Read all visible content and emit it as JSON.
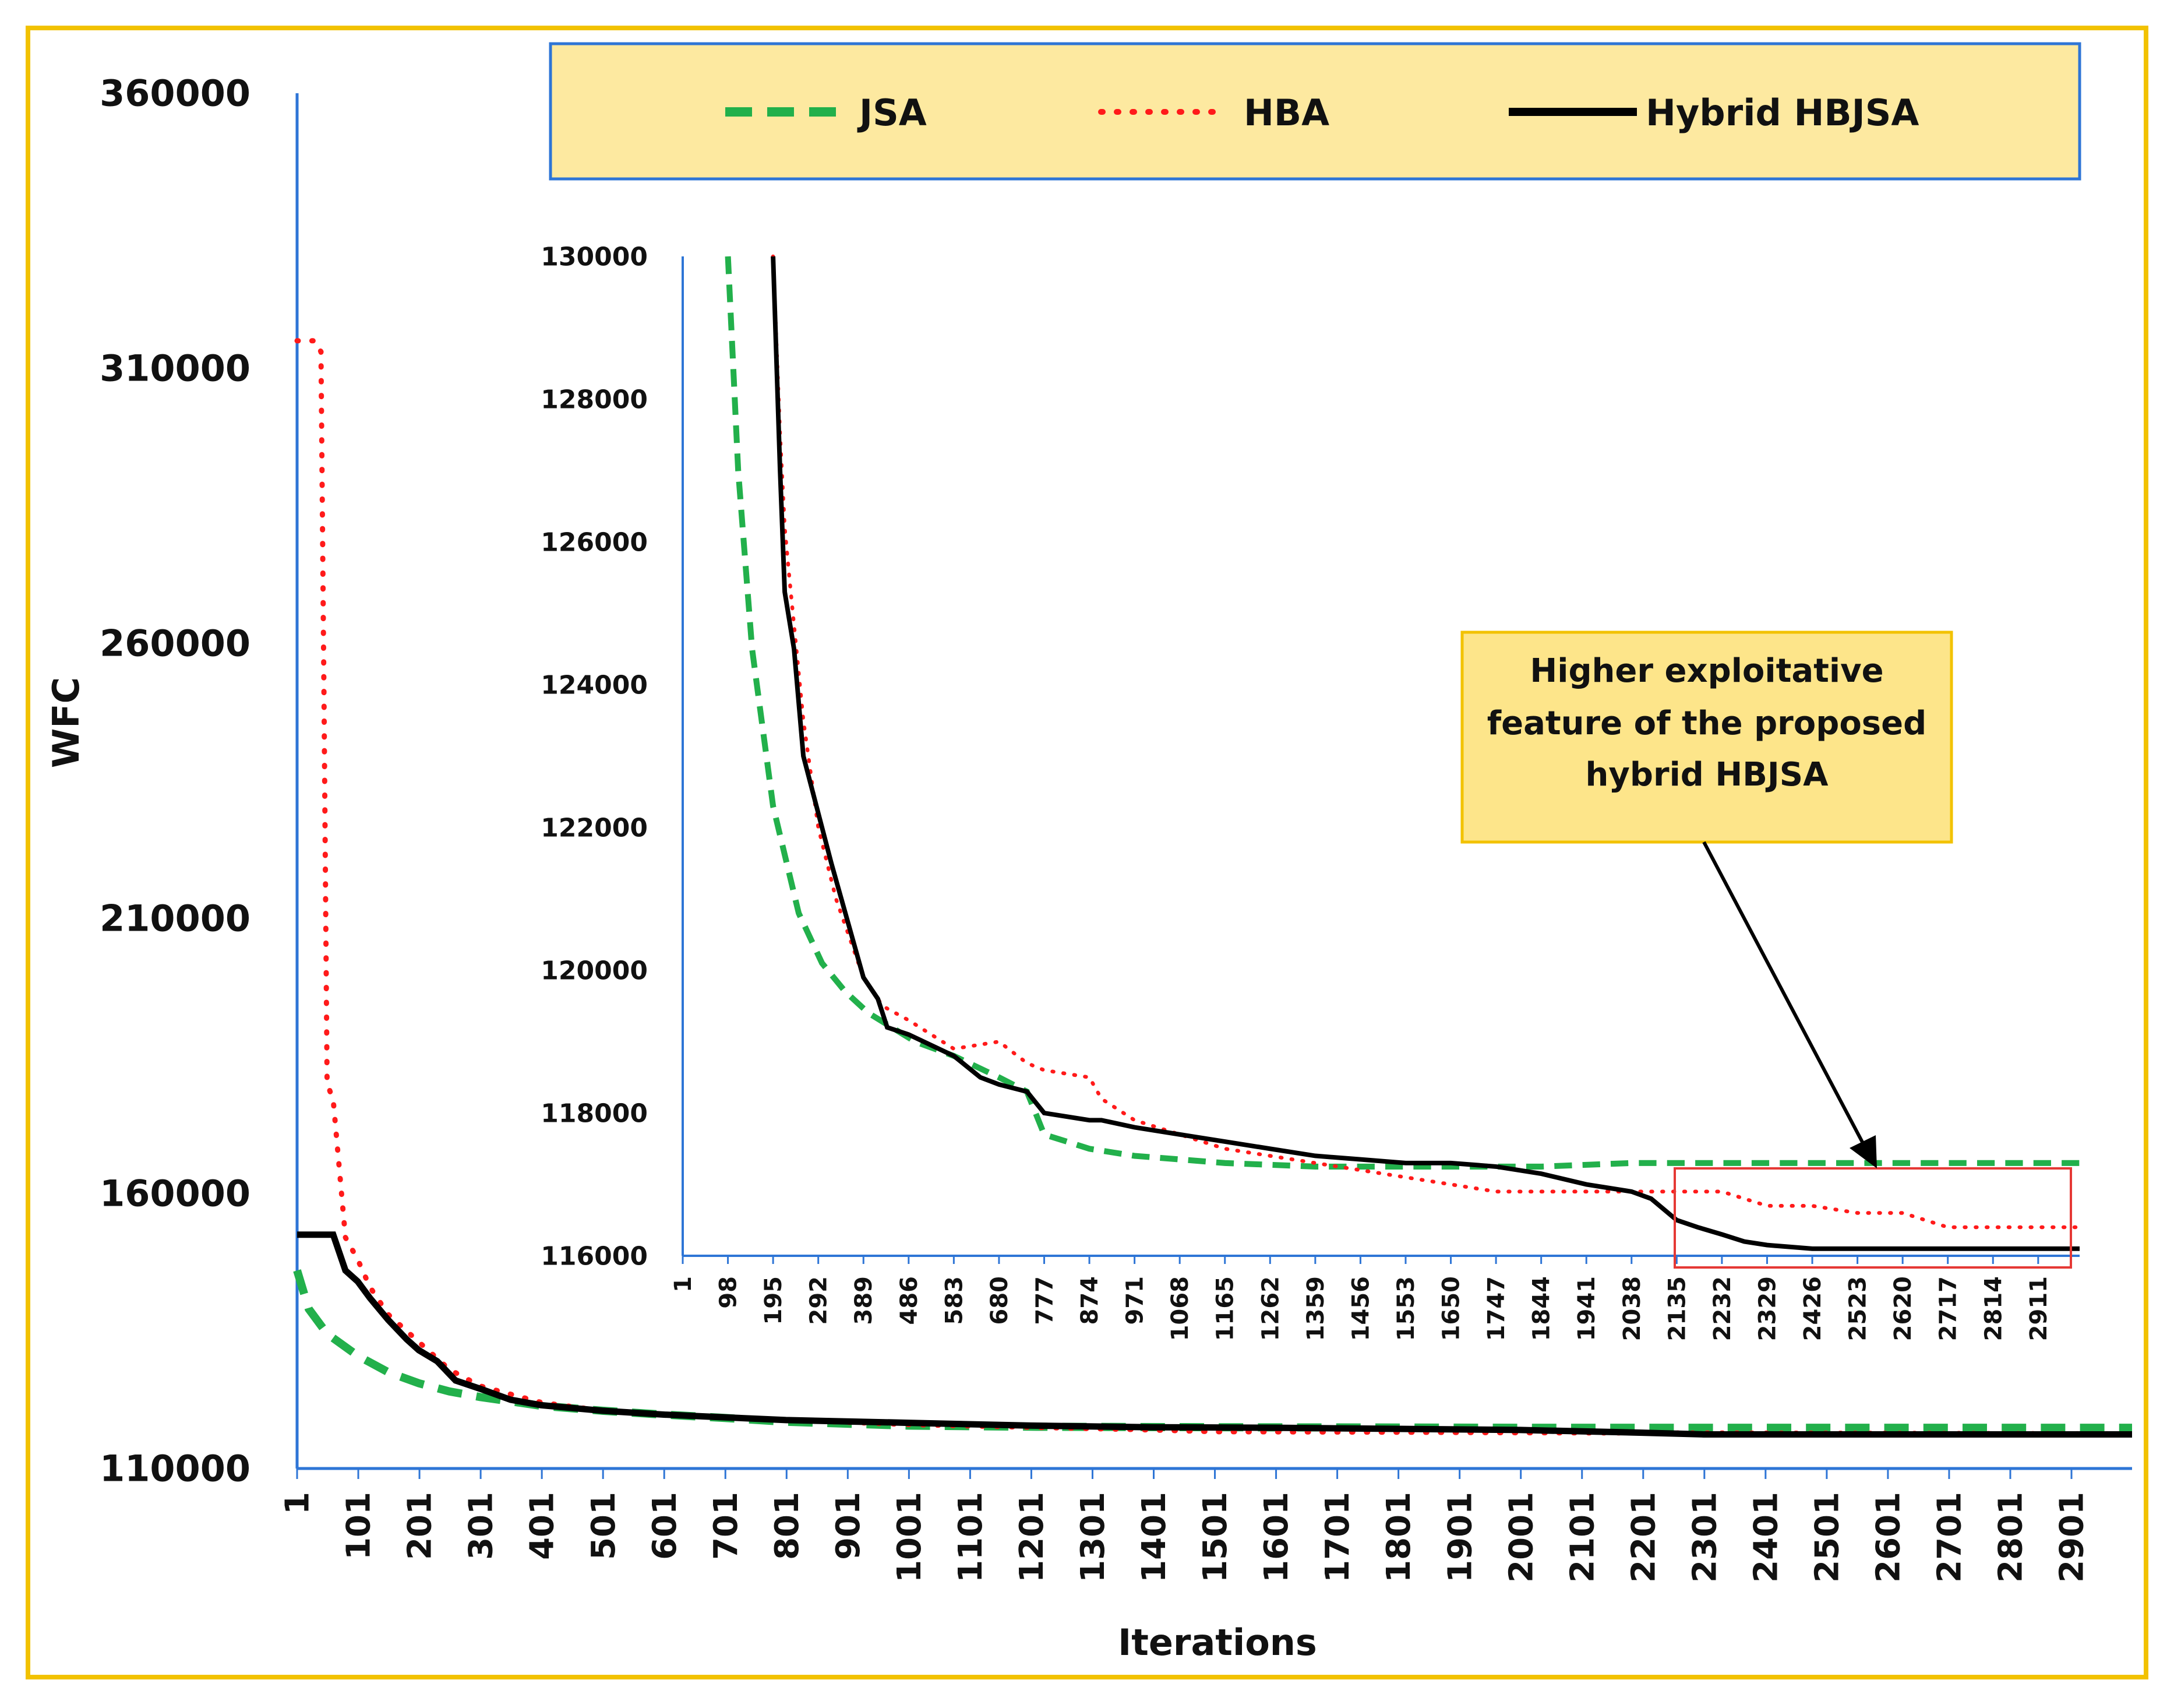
{
  "colors": {
    "jsa": "#22b04b",
    "hba": "#ff1a1a",
    "hybrid": "#000000",
    "axis": "#2e75d6",
    "frame": "#f2c200",
    "legend_fill": "#fde9a0",
    "legend_border": "#2e75d6",
    "callout_fill": "#fde58a",
    "callout_border": "#f2c200",
    "highlight_box": "#e53935"
  },
  "chart_data": [
    {
      "id": "main",
      "type": "line",
      "title": "",
      "xlabel": "Iterations",
      "ylabel": "WFC",
      "xlim": [
        1,
        3000
      ],
      "ylim": [
        110000,
        360000
      ],
      "yticks": [
        110000,
        160000,
        210000,
        260000,
        310000,
        360000
      ],
      "ytick_labels": [
        "110000",
        "160000",
        "210000",
        "260000",
        "310000",
        "360000"
      ],
      "xticks": [
        1,
        101,
        201,
        301,
        401,
        501,
        601,
        701,
        801,
        901,
        1001,
        1101,
        1201,
        1301,
        1401,
        1501,
        1601,
        1701,
        1801,
        1901,
        2001,
        2101,
        2201,
        2301,
        2401,
        2501,
        2601,
        2701,
        2801,
        2901
      ],
      "xtick_labels": [
        "1",
        "101",
        "201",
        "301",
        "401",
        "501",
        "601",
        "701",
        "801",
        "901",
        "1001",
        "1101",
        "1201",
        "1301",
        "1401",
        "1501",
        "1601",
        "1701",
        "1801",
        "1901",
        "2001",
        "2101",
        "2201",
        "2301",
        "2401",
        "2501",
        "2601",
        "2701",
        "2801",
        "2901"
      ],
      "legend": {
        "position": "top",
        "entries": [
          "JSA",
          "HBA",
          "Hybrid HBJSA"
        ]
      },
      "series": [
        {
          "name": "JSA",
          "style": "dashed",
          "x": [
            1,
            20,
            50,
            100,
            150,
            200,
            250,
            300,
            350,
            400,
            500,
            600,
            700,
            800,
            1000,
            1200,
            1500,
            2000,
            2500,
            3000
          ],
          "y": [
            146000,
            139000,
            134500,
            130500,
            127500,
            125500,
            124000,
            123000,
            122200,
            121400,
            120500,
            119800,
            119200,
            118500,
            117800,
            117600,
            117500,
            117400,
            117400,
            117400
          ]
        },
        {
          "name": "HBA",
          "style": "dotted",
          "x": [
            1,
            30,
            40,
            45,
            50,
            60,
            80,
            100,
            120,
            150,
            200,
            250,
            300,
            400,
            500,
            600,
            700,
            800,
            1000,
            1200,
            1400,
            1500,
            1800,
            2000,
            2500,
            3000
          ],
          "y": [
            315000,
            315000,
            313000,
            250000,
            180000,
            177000,
            152000,
            148000,
            143000,
            138000,
            133000,
            128000,
            125000,
            122000,
            120500,
            119800,
            119300,
            118800,
            118000,
            117500,
            117000,
            116700,
            116600,
            116500,
            116400,
            116300
          ]
        },
        {
          "name": "Hybrid HBJSA",
          "style": "solid",
          "x": [
            1,
            60,
            80,
            100,
            120,
            150,
            180,
            200,
            230,
            260,
            300,
            350,
            400,
            500,
            600,
            700,
            800,
            1000,
            1200,
            1400,
            1600,
            2000,
            2200,
            2300,
            2500,
            3000
          ],
          "y": [
            152500,
            152500,
            146000,
            144000,
            141000,
            137000,
            133500,
            131500,
            129500,
            126000,
            124500,
            122500,
            121500,
            120500,
            119800,
            119300,
            118800,
            118300,
            117800,
            117500,
            117400,
            117000,
            116500,
            116200,
            116200,
            116200
          ]
        }
      ]
    },
    {
      "id": "inset",
      "type": "line",
      "title": "",
      "xlabel": "",
      "ylabel": "",
      "xlim": [
        1,
        3000
      ],
      "ylim": [
        116000,
        130000
      ],
      "yticks": [
        116000,
        118000,
        120000,
        122000,
        124000,
        126000,
        128000,
        130000
      ],
      "ytick_labels": [
        "116000",
        "118000",
        "120000",
        "122000",
        "124000",
        "126000",
        "128000",
        "130000"
      ],
      "xticks": [
        1,
        98,
        195,
        292,
        389,
        486,
        583,
        680,
        777,
        874,
        971,
        1068,
        1165,
        1262,
        1359,
        1456,
        1553,
        1650,
        1747,
        1844,
        1941,
        2038,
        2135,
        2232,
        2329,
        2426,
        2523,
        2620,
        2717,
        2814,
        2911
      ],
      "xtick_labels": [
        "1",
        "98",
        "195",
        "292",
        "389",
        "486",
        "583",
        "680",
        "777",
        "874",
        "971",
        "1068",
        "1165",
        "1262",
        "1359",
        "1456",
        "1553",
        "1650",
        "1747",
        "1844",
        "1941",
        "2038",
        "2135",
        "2232",
        "2329",
        "2426",
        "2523",
        "2620",
        "2717",
        "2814",
        "2911"
      ],
      "series": [
        {
          "name": "JSA",
          "style": "dashed",
          "x": [
            98,
            120,
            150,
            195,
            250,
            300,
            350,
            400,
            450,
            500,
            583,
            680,
            740,
            777,
            874,
            971,
            1068,
            1165,
            1359,
            1553,
            1747,
            1844,
            2038,
            2232,
            2426,
            2620,
            2814,
            3000
          ],
          "y": [
            130000,
            127000,
            124500,
            122300,
            120800,
            120100,
            119700,
            119400,
            119200,
            119000,
            118800,
            118500,
            118300,
            117700,
            117500,
            117400,
            117350,
            117300,
            117250,
            117250,
            117250,
            117250,
            117300,
            117300,
            117300,
            117300,
            117300,
            117300
          ]
        },
        {
          "name": "HBA",
          "style": "dotted",
          "x": [
            195,
            210,
            220,
            230,
            260,
            292,
            330,
            389,
            430,
            486,
            583,
            680,
            740,
            777,
            874,
            900,
            971,
            1068,
            1165,
            1262,
            1359,
            1456,
            1553,
            1650,
            1747,
            1844,
            1941,
            2038,
            2135,
            2232,
            2329,
            2426,
            2523,
            2620,
            2717,
            2814,
            2911,
            3000
          ],
          "y": [
            130000,
            127500,
            126200,
            125500,
            123500,
            122000,
            121000,
            119900,
            119500,
            119300,
            118900,
            119000,
            118700,
            118600,
            118500,
            118200,
            117900,
            117700,
            117500,
            117400,
            117300,
            117200,
            117100,
            117000,
            116900,
            116900,
            116900,
            116900,
            116900,
            116900,
            116700,
            116700,
            116600,
            116600,
            116400,
            116400,
            116400,
            116400
          ]
        },
        {
          "name": "Hybrid HBJSA",
          "style": "solid",
          "x": [
            195,
            210,
            220,
            240,
            260,
            292,
            320,
            389,
            420,
            440,
            486,
            583,
            640,
            680,
            740,
            777,
            874,
            900,
            971,
            1068,
            1165,
            1262,
            1359,
            1456,
            1553,
            1650,
            1747,
            1844,
            1941,
            2038,
            2080,
            2135,
            2180,
            2232,
            2280,
            2329,
            2426,
            2523,
            2620,
            2717,
            2814,
            2911,
            3000
          ],
          "y": [
            130000,
            127000,
            125300,
            124500,
            123000,
            122200,
            121500,
            119900,
            119600,
            119200,
            119100,
            118800,
            118500,
            118400,
            118300,
            118000,
            117900,
            117900,
            117800,
            117700,
            117600,
            117500,
            117400,
            117350,
            117300,
            117300,
            117250,
            117150,
            117000,
            116900,
            116800,
            116500,
            116400,
            116300,
            116200,
            116150,
            116100,
            116100,
            116100,
            116100,
            116100,
            116100,
            116100
          ]
        }
      ]
    }
  ],
  "callout": {
    "lines": [
      "Higher exploitative",
      "feature of the proposed",
      "hybrid HBJSA"
    ]
  }
}
